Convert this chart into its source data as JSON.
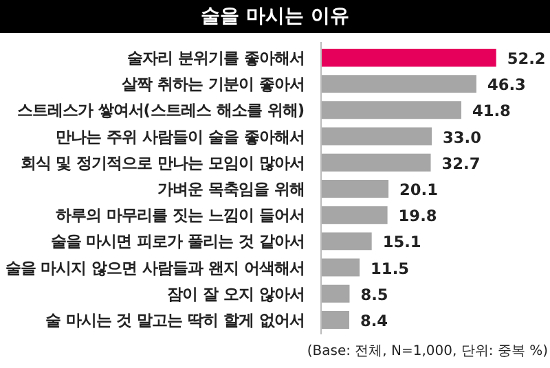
{
  "chart_data": {
    "type": "bar",
    "orientation": "horizontal",
    "title": "술을 마시는 이유",
    "categories": [
      "술자리 분위기를 좋아해서",
      "살짝 취하는 기분이 좋아서",
      "스트레스가 쌓여서(스트레스 해소를 위해)",
      "만나는 주위 사람들이 술을 좋아해서",
      "회식 및 정기적으로 만나는 모임이 많아서",
      "가벼운 목축임을 위해",
      "하루의 마무리를 짓는 느낌이 들어서",
      "술을 마시면 피로가 풀리는 것 같아서",
      "술을 마시지 않으면 사람들과 왠지 어색해서",
      "잠이 잘 오지 않아서",
      "술 마시는 것 말고는 딱히 할게 없어서"
    ],
    "values": [
      52.2,
      46.3,
      41.8,
      33.0,
      32.7,
      20.1,
      19.8,
      15.1,
      11.5,
      8.5,
      8.4
    ],
    "colors": [
      "#e6005c",
      "#a6a6a6",
      "#a6a6a6",
      "#a6a6a6",
      "#a6a6a6",
      "#a6a6a6",
      "#a6a6a6",
      "#a6a6a6",
      "#a6a6a6",
      "#a6a6a6",
      "#a6a6a6"
    ],
    "value_labels": [
      "52.2",
      "46.3",
      "41.8",
      "33.0",
      "32.7",
      "20.1",
      "19.8",
      "15.1",
      "11.5",
      "8.5",
      "8.4"
    ],
    "annotations": [
      "(Base: 전체, N=1,000, 단위: 중복 %)"
    ],
    "grid": false
  }
}
